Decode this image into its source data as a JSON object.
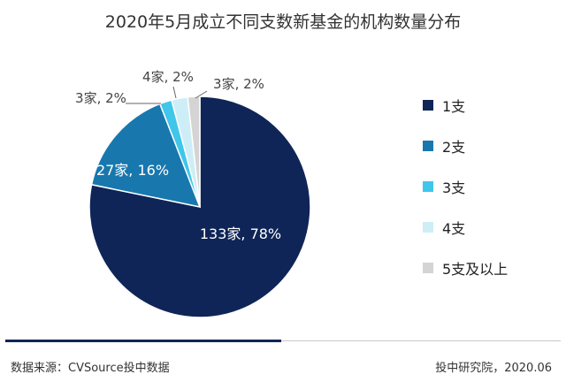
{
  "chart_data": {
    "type": "pie",
    "title": "2020年5月成立不同支数新基金的机构数量分布",
    "slices": [
      {
        "name": "1支",
        "value": 133,
        "label": "133家, 78%",
        "color": "#0f2557"
      },
      {
        "name": "2支",
        "value": 27,
        "label": "27家, 16%",
        "color": "#1878ae"
      },
      {
        "name": "3支",
        "value": 3,
        "label": "3家, 2%",
        "color": "#3fc6ea"
      },
      {
        "name": "4支",
        "value": 4,
        "label": "4家, 2%",
        "color": "#cdeef6"
      },
      {
        "name": "5支及以上",
        "value": 3,
        "label": "3家, 2%",
        "color": "#d4d4d4"
      }
    ],
    "legend_position": "right"
  },
  "footer": {
    "source": "数据来源：CVSource投中数据",
    "publisher": "投中研究院，2020.06"
  }
}
